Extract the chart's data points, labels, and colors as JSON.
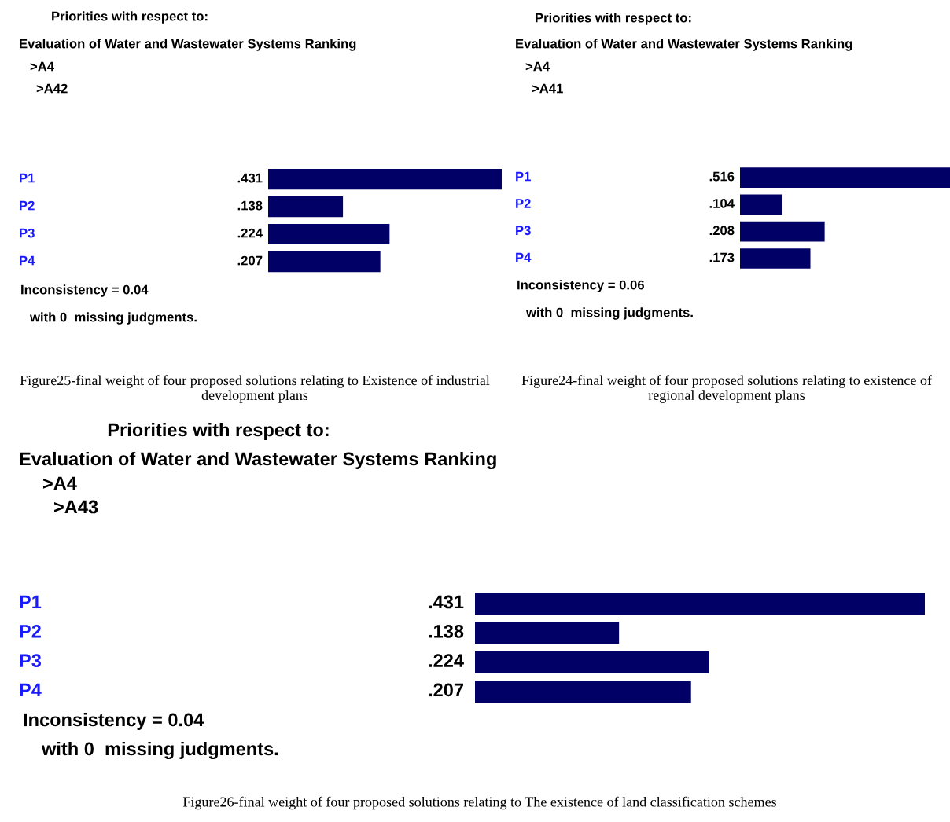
{
  "chart_data": [
    {
      "type": "bar",
      "orientation": "horizontal",
      "title": "Priorities with respect to:",
      "subtitle": "Evaluation of Water and Wastewater Systems Ranking",
      "categories": [
        "P1",
        "P2",
        "P3",
        "P4"
      ],
      "values": [
        0.431,
        0.138,
        0.224,
        0.207
      ],
      "value_labels": [
        ".431",
        ".138",
        ".224",
        ".207"
      ],
      "color": "#000066",
      "annotations": [
        ">A4",
        ">A42",
        "Inconsistency = 0.04",
        "with 0  missing judgments.",
        "Figure25-final weight of four proposed solutions relating to Existence of industrial development plans"
      ]
    },
    {
      "type": "bar",
      "orientation": "horizontal",
      "title": "Priorities with respect to:",
      "subtitle": "Evaluation of Water and Wastewater Systems Ranking",
      "categories": [
        "P1",
        "P2",
        "P3",
        "P4"
      ],
      "values": [
        0.516,
        0.104,
        0.208,
        0.173
      ],
      "value_labels": [
        ".516",
        ".104",
        ".208",
        ".173"
      ],
      "color": "#000066",
      "annotations": [
        ">A4",
        ">A41",
        "Inconsistency = 0.06",
        "with 0  missing judgments.",
        "Figure24-final weight of four proposed solutions relating to existence of regional development plans"
      ]
    },
    {
      "type": "bar",
      "orientation": "horizontal",
      "title": "Priorities with respect to:",
      "subtitle": "Evaluation of Water and Wastewater Systems Ranking",
      "categories": [
        "P1",
        "P2",
        "P3",
        "P4"
      ],
      "values": [
        0.431,
        0.138,
        0.224,
        0.207
      ],
      "value_labels": [
        ".431",
        ".138",
        ".224",
        ".207"
      ],
      "color": "#000066",
      "annotations": [
        ">A4",
        ">A43",
        "Inconsistency = 0.04",
        "with 0  missing judgments.",
        "Figure26-final weight of four proposed solutions relating to The existence of land classification schemes"
      ]
    }
  ]
}
